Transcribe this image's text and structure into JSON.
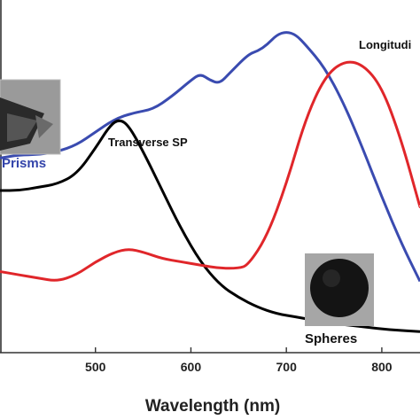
{
  "chart_data": {
    "type": "line",
    "title": "",
    "xlabel": "Wavelength (nm)",
    "ylabel": "",
    "xlim": [
      400,
      840
    ],
    "ylim": [
      0,
      1
    ],
    "x_ticks": [
      "500",
      "600",
      "700",
      "800"
    ],
    "grid": false,
    "legend": "none",
    "series": [
      {
        "color": "#3a4bb0",
        "points": [
          [
            400,
            0.6
          ],
          [
            420,
            0.61
          ],
          [
            440,
            0.61
          ],
          [
            460,
            0.62
          ],
          [
            480,
            0.64
          ],
          [
            500,
            0.68
          ],
          [
            520,
            0.72
          ],
          [
            540,
            0.74
          ],
          [
            560,
            0.75
          ],
          [
            580,
            0.79
          ],
          [
            600,
            0.84
          ],
          [
            610,
            0.86
          ],
          [
            620,
            0.84
          ],
          [
            630,
            0.83
          ],
          [
            640,
            0.86
          ],
          [
            660,
            0.92
          ],
          [
            670,
            0.93
          ],
          [
            680,
            0.95
          ],
          [
            690,
            0.98
          ],
          [
            700,
            0.99
          ],
          [
            710,
            0.98
          ],
          [
            720,
            0.95
          ],
          [
            740,
            0.88
          ],
          [
            760,
            0.77
          ],
          [
            780,
            0.63
          ],
          [
            800,
            0.48
          ],
          [
            820,
            0.34
          ],
          [
            840,
            0.22
          ]
        ]
      },
      {
        "color": "#000000",
        "points": [
          [
            400,
            0.5
          ],
          [
            420,
            0.5
          ],
          [
            440,
            0.51
          ],
          [
            460,
            0.52
          ],
          [
            480,
            0.55
          ],
          [
            500,
            0.63
          ],
          [
            515,
            0.7
          ],
          [
            525,
            0.72
          ],
          [
            535,
            0.7
          ],
          [
            550,
            0.62
          ],
          [
            570,
            0.5
          ],
          [
            590,
            0.38
          ],
          [
            610,
            0.28
          ],
          [
            630,
            0.21
          ],
          [
            650,
            0.17
          ],
          [
            670,
            0.14
          ],
          [
            690,
            0.12
          ],
          [
            710,
            0.11
          ],
          [
            730,
            0.1
          ],
          [
            750,
            0.09
          ],
          [
            780,
            0.08
          ],
          [
            810,
            0.07
          ],
          [
            840,
            0.065
          ]
        ]
      },
      {
        "color": "#e0262a",
        "points": [
          [
            400,
            0.25
          ],
          [
            420,
            0.24
          ],
          [
            440,
            0.23
          ],
          [
            460,
            0.22
          ],
          [
            480,
            0.24
          ],
          [
            500,
            0.28
          ],
          [
            520,
            0.31
          ],
          [
            535,
            0.32
          ],
          [
            550,
            0.31
          ],
          [
            570,
            0.29
          ],
          [
            590,
            0.28
          ],
          [
            610,
            0.27
          ],
          [
            630,
            0.26
          ],
          [
            650,
            0.26
          ],
          [
            660,
            0.27
          ],
          [
            680,
            0.36
          ],
          [
            700,
            0.52
          ],
          [
            720,
            0.72
          ],
          [
            740,
            0.85
          ],
          [
            760,
            0.9
          ],
          [
            780,
            0.89
          ],
          [
            800,
            0.82
          ],
          [
            820,
            0.66
          ],
          [
            840,
            0.45
          ]
        ]
      }
    ],
    "annotations": {
      "transverse": "Transverse SP",
      "longitudinal": "Longitudi",
      "prisms": "Prisms",
      "spheres": "Spheres"
    }
  }
}
